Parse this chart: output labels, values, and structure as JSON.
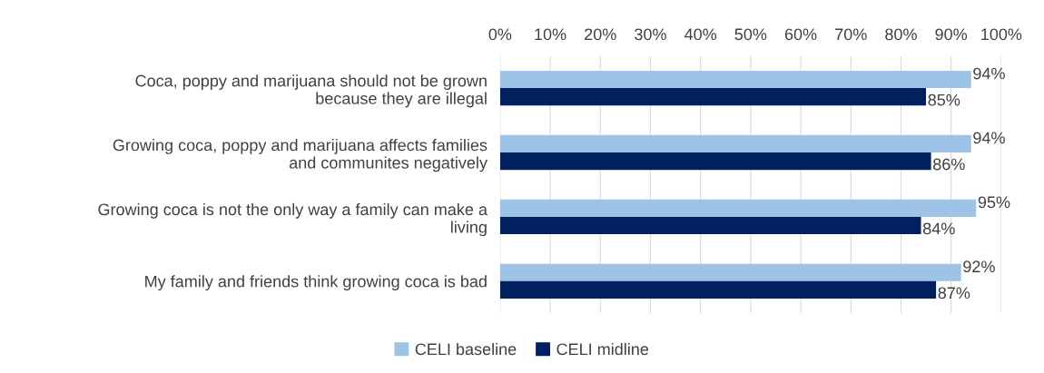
{
  "chart_data": {
    "type": "bar",
    "orientation": "horizontal",
    "categories": [
      "Coca, poppy and marijuana should not be grown\nbecause they are illegal",
      "Growing coca, poppy and marijuana affects families\nand communites negatively",
      "Growing coca is not the only way a family can make a\nliving",
      "My family and friends think growing coca is bad"
    ],
    "series": [
      {
        "name": "CELI baseline",
        "color": "#9dc3e6",
        "values": [
          94,
          94,
          95,
          92
        ],
        "value_labels": [
          "94%",
          "94%",
          "95%",
          "92%"
        ]
      },
      {
        "name": "CELI midline",
        "color": "#002060",
        "values": [
          85,
          86,
          84,
          87
        ],
        "value_labels": [
          "85%",
          "86%",
          "84%",
          "87%"
        ]
      }
    ],
    "xlim": [
      0,
      100
    ],
    "xticks": [
      {
        "value": 0,
        "label": "0%"
      },
      {
        "value": 10,
        "label": "10%"
      },
      {
        "value": 20,
        "label": "20%"
      },
      {
        "value": 30,
        "label": "30%"
      },
      {
        "value": 40,
        "label": "40%"
      },
      {
        "value": 50,
        "label": "50%"
      },
      {
        "value": 60,
        "label": "60%"
      },
      {
        "value": 70,
        "label": "70%"
      },
      {
        "value": 80,
        "label": "80%"
      },
      {
        "value": 90,
        "label": "90%"
      },
      {
        "value": 100,
        "label": "100%"
      }
    ],
    "grid": "x",
    "legend": "bottom"
  }
}
